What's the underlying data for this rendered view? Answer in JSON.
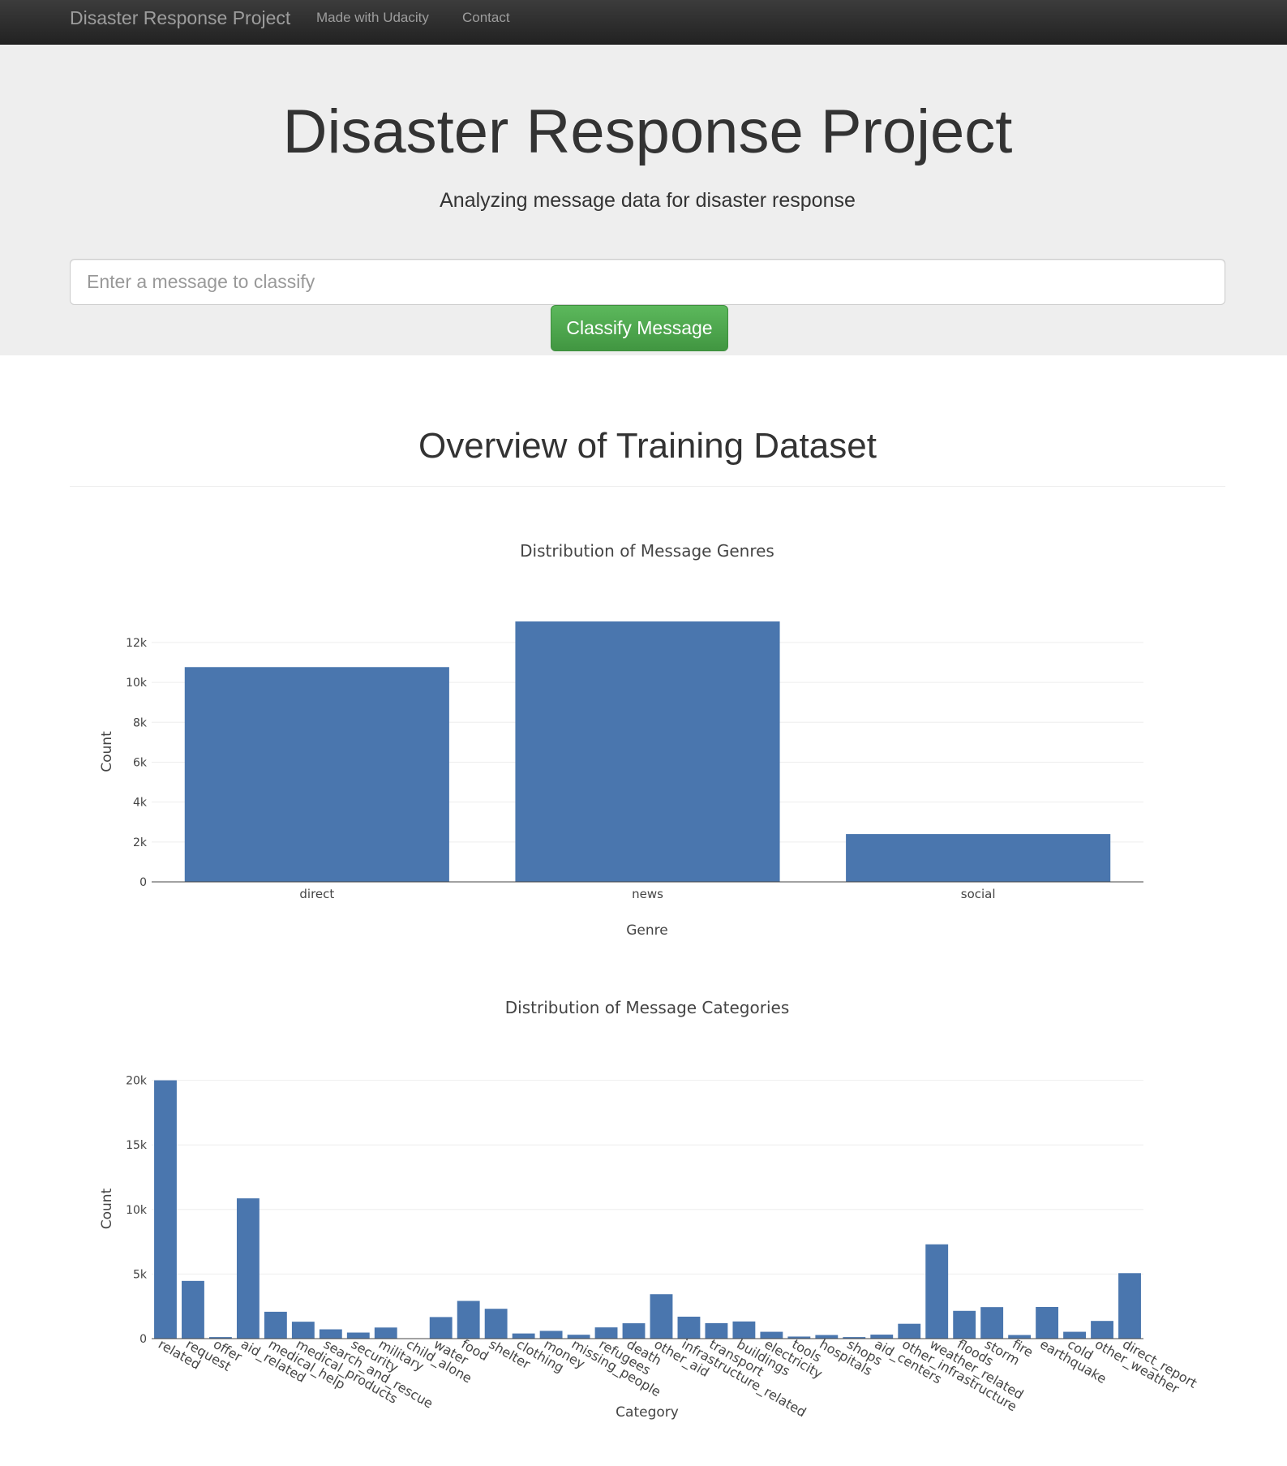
{
  "navbar": {
    "brand": "Disaster Response Project",
    "links": [
      "Made with Udacity",
      "Contact"
    ]
  },
  "jumbotron": {
    "title": "Disaster Response Project",
    "subtitle": "Analyzing message data for disaster response",
    "input_placeholder": "Enter a message to classify",
    "input_value": "",
    "button_label": "Classify Message"
  },
  "section": {
    "title": "Overview of Training Dataset"
  },
  "colors": {
    "bar": "#4a76ae",
    "success": "#5cb85c"
  },
  "chart_data": [
    {
      "type": "bar",
      "title": "Distribution of Message Genres",
      "xlabel": "Genre",
      "ylabel": "Count",
      "categories": [
        "direct",
        "news",
        "social"
      ],
      "values": [
        10766,
        13054,
        2396
      ],
      "ylim": [
        0,
        13054
      ],
      "yticks": [
        0,
        2000,
        4000,
        6000,
        8000,
        10000,
        12000
      ],
      "ytick_labels": [
        "0",
        "2k",
        "4k",
        "6k",
        "8k",
        "10k",
        "12k"
      ],
      "grid": true
    },
    {
      "type": "bar",
      "title": "Distribution of Message Categories",
      "xlabel": "Category",
      "ylabel": "Count",
      "categories": [
        "related",
        "request",
        "offer",
        "aid_related",
        "medical_help",
        "medical_products",
        "search_and_rescue",
        "security",
        "military",
        "child_alone",
        "water",
        "food",
        "shelter",
        "clothing",
        "money",
        "missing_people",
        "refugees",
        "death",
        "other_aid",
        "infrastructure_related",
        "transport",
        "buildings",
        "electricity",
        "tools",
        "hospitals",
        "shops",
        "aid_centers",
        "other_infrastructure",
        "weather_related",
        "floods",
        "storm",
        "fire",
        "earthquake",
        "cold",
        "other_weather",
        "direct_report"
      ],
      "values": [
        20000,
        4470,
        120,
        10860,
        2080,
        1310,
        720,
        470,
        860,
        0,
        1670,
        2920,
        2310,
        400,
        600,
        300,
        870,
        1190,
        3440,
        1700,
        1200,
        1330,
        530,
        160,
        280,
        120,
        310,
        1150,
        7300,
        2150,
        2440,
        280,
        2450,
        530,
        1370,
        5070
      ],
      "ylim": [
        0,
        20100
      ],
      "yticks": [
        0,
        5000,
        10000,
        15000,
        20000
      ],
      "ytick_labels": [
        "0",
        "5k",
        "10k",
        "15k",
        "20k"
      ],
      "grid": true
    }
  ]
}
